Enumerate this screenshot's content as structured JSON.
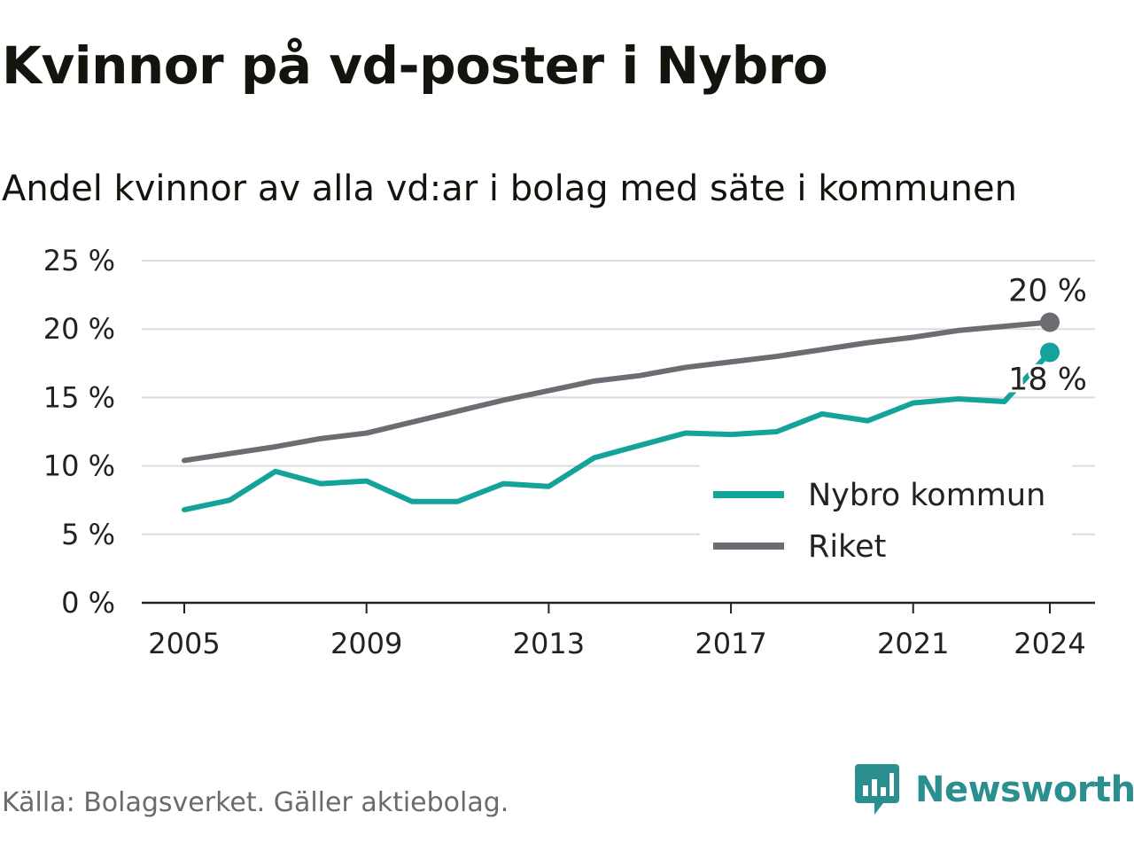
{
  "title": "Kvinnor på vd-poster i Nybro",
  "subtitle": "Andel kvinnor av alla vd:ar i bolag med säte i kommunen",
  "source": "Källa: Bolagsverket. Gäller aktiebolag.",
  "brand": {
    "name": "Newsworthy",
    "icon": "newsworthy-logo-icon"
  },
  "colors": {
    "nybro": "#13a39a",
    "riket": "#6c6c73",
    "grid": "#dcdcdc",
    "axis": "#222222",
    "text": "#222222"
  },
  "chart_data": {
    "type": "line",
    "x": [
      2005,
      2006,
      2007,
      2008,
      2009,
      2010,
      2011,
      2012,
      2013,
      2014,
      2015,
      2016,
      2017,
      2018,
      2019,
      2020,
      2021,
      2022,
      2023,
      2024
    ],
    "xticks": [
      2005,
      2009,
      2013,
      2017,
      2021,
      2024
    ],
    "xticklabels": [
      "2005",
      "2009",
      "2013",
      "2017",
      "2021",
      "2024"
    ],
    "ylim": [
      0,
      25
    ],
    "yticks": [
      0,
      5,
      10,
      15,
      20,
      25
    ],
    "yticklabels": [
      "0 %",
      "5 %",
      "10 %",
      "15 %",
      "20 %",
      "25 %"
    ],
    "grid": true,
    "legend": "bottom-right",
    "series": [
      {
        "name": "Nybro kommun",
        "key": "nybro",
        "values": [
          6.8,
          7.5,
          9.6,
          8.7,
          8.9,
          7.4,
          7.4,
          8.7,
          8.5,
          10.6,
          11.5,
          12.4,
          12.3,
          12.5,
          13.8,
          13.3,
          14.6,
          14.9,
          14.7,
          18.3
        ],
        "end_label": "18 %"
      },
      {
        "name": "Riket",
        "key": "riket",
        "values": [
          10.4,
          10.9,
          11.4,
          12.0,
          12.4,
          13.2,
          14.0,
          14.8,
          15.5,
          16.2,
          16.6,
          17.2,
          17.6,
          18.0,
          18.5,
          19.0,
          19.4,
          19.9,
          20.2,
          20.5
        ],
        "end_label": "20 %"
      }
    ]
  }
}
